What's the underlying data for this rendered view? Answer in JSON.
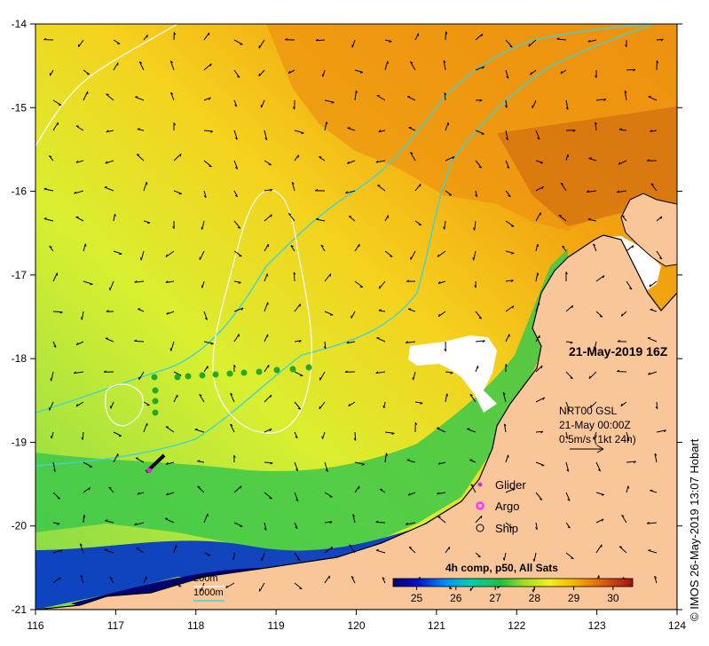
{
  "map": {
    "timestamp": "21-May-2019 16Z",
    "x_ticks": [
      "116",
      "117",
      "118",
      "119",
      "120",
      "121",
      "122",
      "123",
      "124"
    ],
    "y_ticks": [
      "-14",
      "-15",
      "-16",
      "-17",
      "-18",
      "-19",
      "-20",
      "-21"
    ],
    "lon_range": [
      116,
      124
    ],
    "lat_range": [
      -21,
      -14
    ],
    "current_info": {
      "line1": "NRT00 GSL",
      "line2": "21-May 00:00Z",
      "line3": "0.5m/s (1kt 24h)"
    },
    "legend": {
      "glider": "Glider",
      "argo": "Argo",
      "ship": "Ship"
    },
    "isobaths": {
      "label_200": "200m",
      "label_1000": "1000m"
    },
    "colorbar": {
      "title": "4h comp, p50, All Sats",
      "ticks": [
        "25",
        "26",
        "27",
        "28",
        "29",
        "30"
      ],
      "range": [
        24.4,
        30.5
      ]
    },
    "credit": "© IMOS 26-May-2019 13:07 Hobart",
    "colors": {
      "land": "#f9c69a",
      "coast_line": "#000000",
      "isobath_200": "#ffffff",
      "isobath_1000": "#3fd3d3",
      "argo": "#ff33ff",
      "glider": "#cc33cc",
      "drifter": "#22aa22"
    }
  }
}
